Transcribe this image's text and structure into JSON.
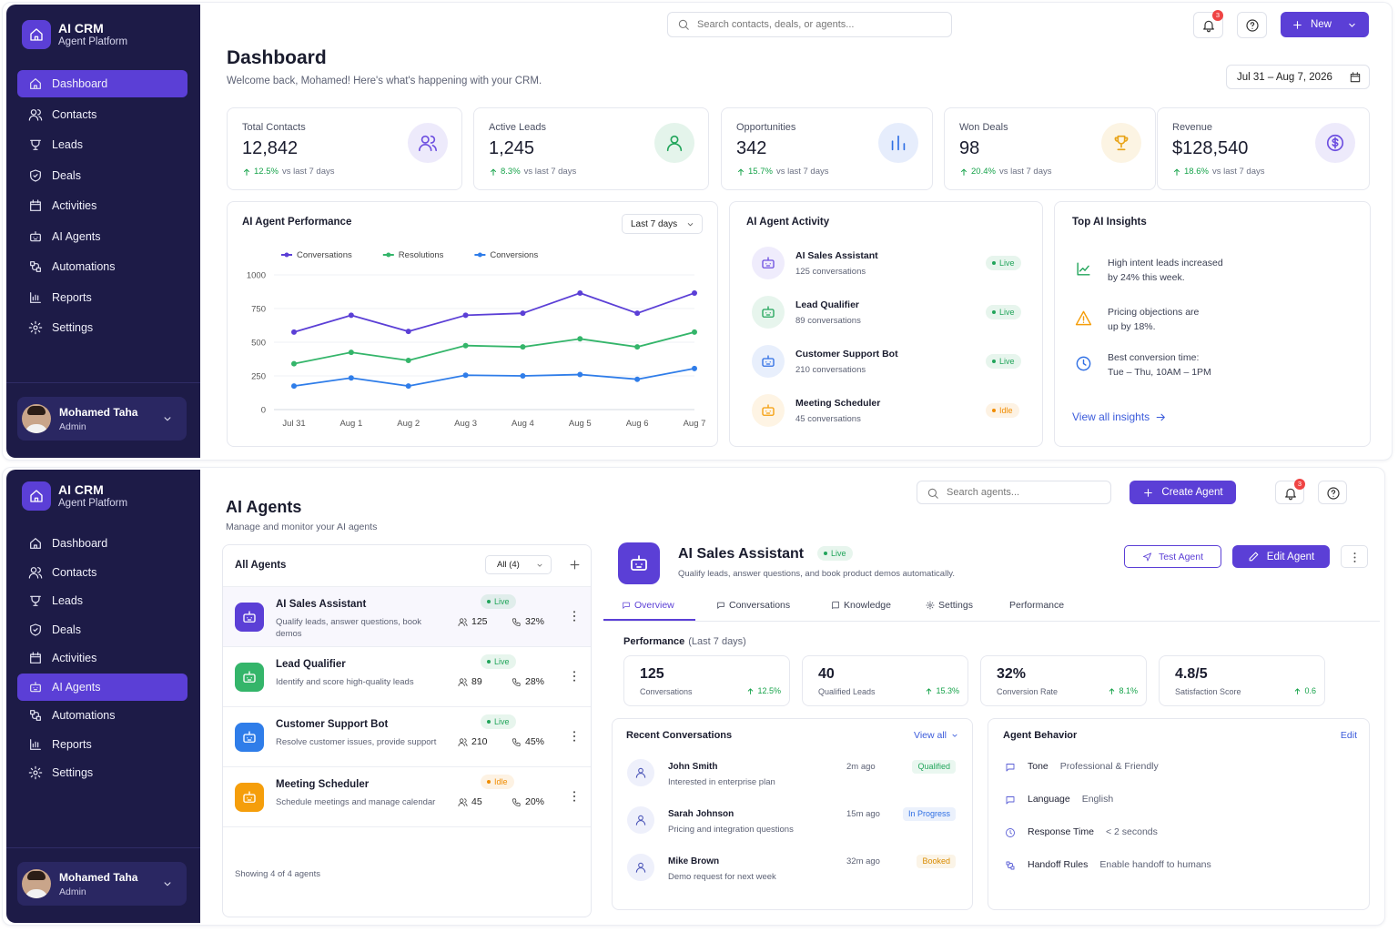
{
  "sidebar": {
    "brand": "AI CRM",
    "tagline": "Agent Platform",
    "nav": [
      "Dashboard",
      "Contacts",
      "Leads",
      "Deals",
      "Activities",
      "AI Agents",
      "Automations",
      "Reports",
      "Settings"
    ],
    "user": {
      "name": "Mohamed Taha",
      "role": "Admin"
    }
  },
  "dashboard": {
    "active_nav": 0,
    "search": "Search contacts, deals, or agents...",
    "notifications": "3",
    "new_button": "New",
    "title": "Dashboard",
    "welcome": "Welcome back, Mohamed! Here's what's happening with your CRM.",
    "date_range": "Jul 31 – Aug 7, 2026",
    "stats": [
      {
        "label": "Total Contacts",
        "value": "12,842",
        "change": "12.5%",
        "period": "vs last 7 days",
        "color": "#6d4fe0"
      },
      {
        "label": "Active Leads",
        "value": "1,245",
        "change": "8.3%",
        "period": "vs last 7 days",
        "color": "#22a55b"
      },
      {
        "label": "Opportunities",
        "value": "342",
        "change": "15.7%",
        "period": "vs last 7 days",
        "color": "#2f6fe4"
      },
      {
        "label": "Won Deals",
        "value": "98",
        "change": "20.4%",
        "period": "vs last 7 days",
        "color": "#e8a317"
      },
      {
        "label": "Revenue",
        "value": "$128,540",
        "change": "18.6%",
        "period": "vs last 7 days",
        "color": "#6d4fe0"
      }
    ],
    "performance": {
      "type": "line",
      "title": "AI Agent Performance",
      "range": "Last 7 days",
      "categories": [
        "Jul 31",
        "Aug 1",
        "Aug 2",
        "Aug 3",
        "Aug 4",
        "Aug 5",
        "Aug 6",
        "Aug 7"
      ],
      "series": [
        {
          "name": "Conversations",
          "color": "#5b3fd6",
          "values": [
            575,
            700,
            580,
            700,
            715,
            865,
            715,
            865
          ]
        },
        {
          "name": "Resolutions",
          "color": "#34b56a",
          "values": [
            340,
            425,
            365,
            475,
            465,
            525,
            465,
            575
          ]
        },
        {
          "name": "Conversions",
          "color": "#2f7de9",
          "values": [
            175,
            235,
            175,
            255,
            250,
            260,
            225,
            305
          ]
        }
      ],
      "ylim": [
        0,
        1000
      ],
      "yticks": [
        0,
        250,
        500,
        750,
        1000
      ]
    },
    "activity": {
      "title": "AI Agent Activity",
      "agents": [
        {
          "name": "AI Sales Assistant",
          "detail": "125 conversations",
          "status": "Live",
          "color": "#6d4fe0",
          "status_color": "#22a55b"
        },
        {
          "name": "Lead Qualifier",
          "detail": "89 conversations",
          "status": "Live",
          "color": "#22a55b",
          "status_color": "#22a55b"
        },
        {
          "name": "Customer Support Bot",
          "detail": "210 conversations",
          "status": "Live",
          "color": "#2f6fe4",
          "status_color": "#22a55b"
        },
        {
          "name": "Meeting Scheduler",
          "detail": "45 conversations",
          "status": "Idle",
          "color": "#f59e0b",
          "status_color": "#f08c00"
        }
      ]
    },
    "insights": {
      "title": "Top AI Insights",
      "items": [
        {
          "lines": [
            "High intent leads increased",
            "by 24% this week."
          ],
          "color": "#22a55b"
        },
        {
          "lines": [
            "Pricing objections are",
            "up by 18%."
          ],
          "color": "#f59e0b"
        },
        {
          "lines": [
            "Best conversion time:",
            "Tue – Thu, 10AM – 1PM"
          ],
          "color": "#2f6fe4"
        }
      ],
      "link": "View all insights"
    }
  },
  "agents_page": {
    "active_nav": 5,
    "search": "Search agents...",
    "create_button": "Create Agent",
    "notifications": "3",
    "title": "AI Agents",
    "subtitle": "Manage and monitor your AI agents",
    "list": {
      "title": "All Agents",
      "filter": "All (4)",
      "agents": [
        {
          "name": "AI Sales Assistant",
          "status": "Live",
          "description": "Qualify leads, answer questions, book demos",
          "conversations": "125",
          "rate": "32%",
          "color": "#5b3fd6",
          "status_color": "#22a55b"
        },
        {
          "name": "Lead Qualifier",
          "status": "Live",
          "description": "Identify and score high-quality leads",
          "conversations": "89",
          "rate": "28%",
          "color": "#34b56a",
          "status_color": "#22a55b"
        },
        {
          "name": "Customer Support Bot",
          "status": "Live",
          "description": "Resolve customer issues, provide support",
          "conversations": "210",
          "rate": "45%",
          "color": "#2f7de9",
          "status_color": "#22a55b"
        },
        {
          "name": "Meeting Scheduler",
          "status": "Idle",
          "description": "Schedule meetings and manage calendar",
          "conversations": "45",
          "rate": "20%",
          "color": "#f59e0b",
          "status_color": "#f08c00"
        }
      ],
      "footer": "Showing 4 of 4 agents"
    },
    "detail": {
      "name": "AI Sales Assistant",
      "status": "Live",
      "description": "Qualify leads, answer questions, and book product demos automatically.",
      "test_button": "Test Agent",
      "edit_button": "Edit Agent",
      "tabs": [
        "Overview",
        "Conversations",
        "Knowledge",
        "Settings",
        "Performance"
      ],
      "active_tab": 0,
      "performance_title": "Performance",
      "performance_period": "(Last 7 days)",
      "metrics": [
        {
          "value": "125",
          "label": "Conversations",
          "change": "12.5%"
        },
        {
          "value": "40",
          "label": "Qualified Leads",
          "change": "15.3%"
        },
        {
          "value": "32%",
          "label": "Conversion Rate",
          "change": "8.1%"
        },
        {
          "value": "4.8/5",
          "label": "Satisfaction Score",
          "change": "0.6"
        }
      ],
      "conversations": {
        "title": "Recent Conversations",
        "link": "View all",
        "items": [
          {
            "name": "John Smith",
            "time": "2m ago",
            "tag": "Qualified",
            "text": "Interested in enterprise plan",
            "color": "#22a55b"
          },
          {
            "name": "Sarah Johnson",
            "time": "15m ago",
            "tag": "In Progress",
            "text": "Pricing and integration questions",
            "color": "#2f6fe4"
          },
          {
            "name": "Mike Brown",
            "time": "32m ago",
            "tag": "Booked",
            "text": "Demo request for next week",
            "color": "#d98b00"
          }
        ]
      },
      "behavior": {
        "title": "Agent Behavior",
        "link": "Edit",
        "rows": [
          {
            "label": "Tone",
            "value": "Professional & Friendly"
          },
          {
            "label": "Language",
            "value": "English"
          },
          {
            "label": "Response Time",
            "value": "< 2 seconds"
          },
          {
            "label": "Handoff Rules",
            "value": "Enable handoff to humans"
          }
        ]
      }
    }
  }
}
